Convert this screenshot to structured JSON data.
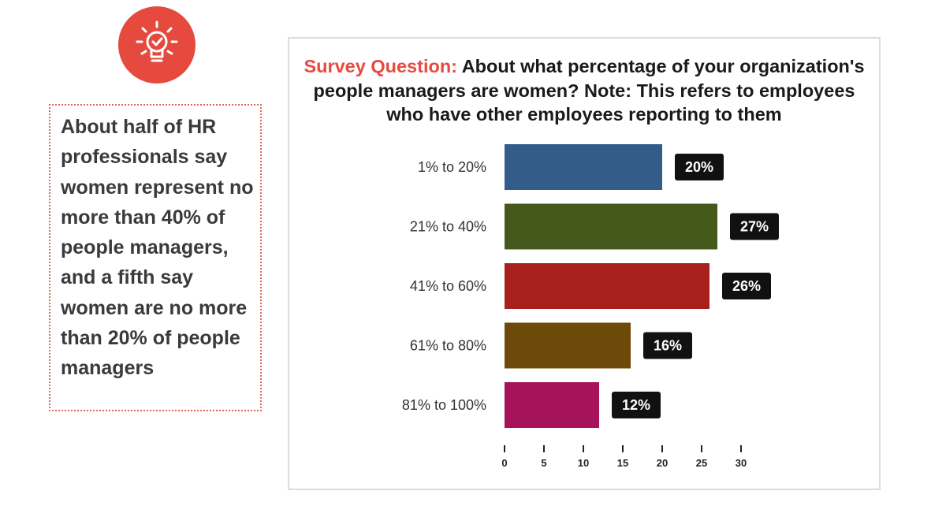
{
  "callout": {
    "text": "About half of HR professionals say women represent no more than 40% of people managers, and a fifth say women are no more than 20% of people managers"
  },
  "icon": {
    "name": "lightbulb-check-icon",
    "color": "#e64a3f"
  },
  "chart_data": {
    "type": "bar",
    "orientation": "horizontal",
    "title_lead": "Survey Question:",
    "title": "About what percentage of your organization's people managers are women? Note: This refers to employees who have other employees reporting to them",
    "categories": [
      "1% to 20%",
      "21% to 40%",
      "41% to 60%",
      "61% to 80%",
      "81% to 100%"
    ],
    "values": [
      20,
      27,
      26,
      16,
      12
    ],
    "value_labels": [
      "20%",
      "27%",
      "26%",
      "16%",
      "12%"
    ],
    "colors": [
      "#335c8a",
      "#45591d",
      "#a8201b",
      "#6e4a0a",
      "#a6135a"
    ],
    "xlim": [
      0,
      30
    ],
    "xticks": [
      0,
      5,
      10,
      15,
      20,
      25,
      30
    ],
    "xticklabels": [
      "0",
      "5",
      "10",
      "15",
      "20",
      "25",
      "30"
    ],
    "xlabel": "",
    "ylabel": ""
  }
}
